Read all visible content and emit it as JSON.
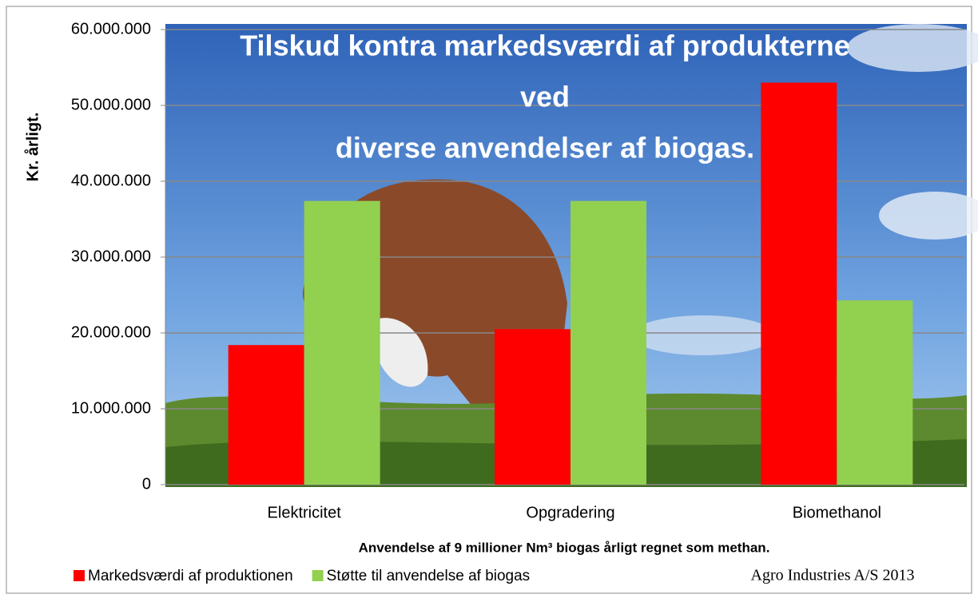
{
  "chart_data": {
    "type": "bar",
    "title": [
      "Tilskud kontra markedsværdi  af produkterne",
      "ved",
      "diverse anvendelser af biogas."
    ],
    "x_label": "Anvendelse af 9 millioner Nm³ biogas årligt regnet som methan.",
    "y_label": "Kr. årligt.",
    "annotation": "Agro Industries A/S 2013",
    "categories": [
      "Elektricitet",
      "Opgradering",
      "Biomethanol"
    ],
    "series": [
      {
        "name": "Markedsværdi af produktionen",
        "color": "#ff0000",
        "values": [
          18400000,
          20500000,
          53000000
        ]
      },
      {
        "name": "Støtte til anvendelse af biogas",
        "color": "#92d050",
        "values": [
          37400000,
          37400000,
          24300000
        ]
      }
    ],
    "ylim": [
      0,
      60000000
    ],
    "yticks": [
      0,
      {
        "value": 10000000,
        "label": "10.000.000"
      },
      {
        "value": 20000000,
        "label": "20.000.000"
      },
      {
        "value": 30000000,
        "label": "30.000.000"
      },
      {
        "value": 40000000,
        "label": "40.000.000"
      },
      {
        "value": 50000000,
        "label": "50.000.000"
      },
      {
        "value": 60000000,
        "label": "60.000.000"
      }
    ],
    "grid": true
  }
}
